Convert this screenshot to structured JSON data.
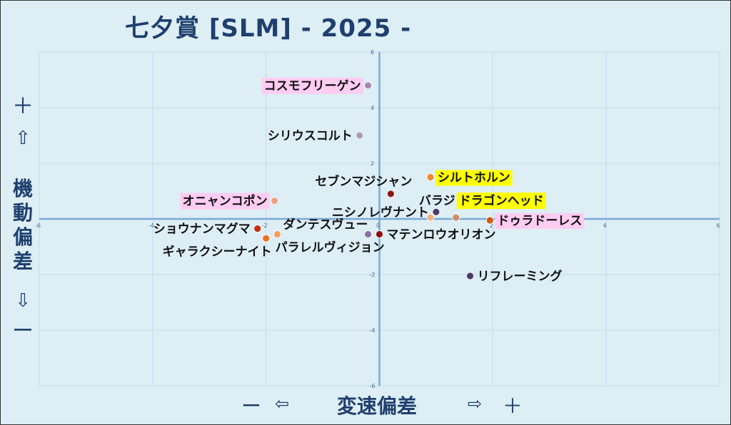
{
  "title": "七夕賞 [SLM]  - 2025 -",
  "y_axis": {
    "plus": "＋",
    "up_arrow": "⇧",
    "label": "機動偏差",
    "down_arrow": "⇩",
    "minus": "ー"
  },
  "x_axis": {
    "minus": "ー",
    "left_arrow": "⇦",
    "label": "変速偏差",
    "right_arrow": "⇨",
    "plus": "＋"
  },
  "colors": {
    "background": "#ddeef5",
    "axis": "#7aaad8",
    "grid": "#c5dcea",
    "title": "#1f3f6e",
    "highlight_yellow": "#ffff00",
    "highlight_pink": "#ffccf2"
  },
  "chart_data": {
    "type": "scatter",
    "xlim": [
      -6,
      6
    ],
    "ylim": [
      -6,
      6
    ],
    "x_ticks": [
      -6,
      -4,
      -2,
      0,
      2,
      4,
      6
    ],
    "y_ticks": [
      -6,
      -4,
      -2,
      0,
      2,
      4,
      6
    ],
    "grid": true,
    "points": [
      {
        "name": "コスモフリーゲン",
        "x": -0.2,
        "y": 4.8,
        "color": "#a888b0",
        "highlight": "pink",
        "label_side": "left"
      },
      {
        "name": "シリウスコルト",
        "x": -0.35,
        "y": 3.0,
        "color": "#a8a0b0",
        "highlight": "none",
        "label_side": "left"
      },
      {
        "name": "セブンマジシャン",
        "x": 0.2,
        "y": 0.9,
        "color": "#8a1a1a",
        "highlight": "none",
        "label_side": "above-left"
      },
      {
        "name": "シルトホルン",
        "x": 0.9,
        "y": 1.5,
        "color": "#f08a30",
        "highlight": "yellow",
        "label_side": "right"
      },
      {
        "name": "オニャンコポン",
        "x": -1.85,
        "y": 0.65,
        "color": "#f0a080",
        "highlight": "pink",
        "label_side": "left"
      },
      {
        "name": "バラジ",
        "x": 0.9,
        "y": 0.05,
        "color": "#f0b080",
        "highlight": "none",
        "label_side": "above"
      },
      {
        "name": "ニシノレヴナント",
        "x": 1.0,
        "y": 0.25,
        "color": "#4a3a6a",
        "highlight": "none",
        "label_side": "left"
      },
      {
        "name": "ドラゴンヘッド",
        "x": 1.35,
        "y": 0.05,
        "color": "#d08a6a",
        "highlight": "yellow",
        "label_side": "above-right"
      },
      {
        "name": "ドゥラドーレス",
        "x": 1.95,
        "y": -0.05,
        "color": "#d05a10",
        "highlight": "pink",
        "label_side": "right"
      },
      {
        "name": "ショウナンマグマ",
        "x": -2.15,
        "y": -0.35,
        "color": "#c03010",
        "highlight": "none",
        "label_side": "left"
      },
      {
        "name": "ダンテスヴュー",
        "x": -1.8,
        "y": -0.55,
        "color": "#f0a060",
        "highlight": "none",
        "label_side": "right-above"
      },
      {
        "name": "ギャラクシーナイト",
        "x": -2.0,
        "y": -0.7,
        "color": "#f07020",
        "highlight": "none",
        "label_side": "below-left"
      },
      {
        "name": "パラレルヴィジョン",
        "x": -0.2,
        "y": -0.55,
        "color": "#8a70a0",
        "highlight": "none",
        "label_side": "below"
      },
      {
        "name": "マテンロウオリオン",
        "x": 0.0,
        "y": -0.55,
        "color": "#901010",
        "highlight": "none",
        "label_side": "right"
      },
      {
        "name": "リフレーミング",
        "x": 1.6,
        "y": -2.05,
        "color": "#4a3a6a",
        "highlight": "none",
        "label_side": "right"
      }
    ]
  }
}
